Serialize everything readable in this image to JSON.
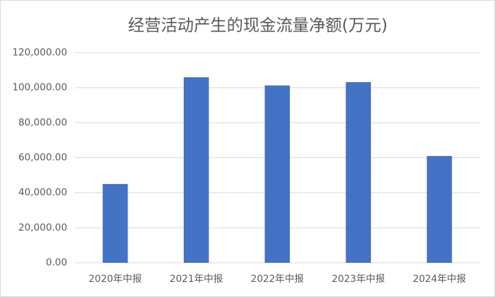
{
  "chart_data": {
    "type": "bar",
    "title": "经营活动产生的现金流量净额(万元)",
    "categories": [
      "2020年中报",
      "2021年中报",
      "2022年中报",
      "2023年中报",
      "2024年中报"
    ],
    "values": [
      45000,
      106000,
      101300,
      103200,
      61000
    ],
    "color": "#4472c4",
    "ylim": [
      0,
      120000
    ],
    "yticks": [
      {
        "value": 0,
        "label": "0.00"
      },
      {
        "value": 20000,
        "label": "20,000.00"
      },
      {
        "value": 40000,
        "label": "40,000.00"
      },
      {
        "value": 60000,
        "label": "60,000.00"
      },
      {
        "value": 80000,
        "label": "80,000.00"
      },
      {
        "value": 100000,
        "label": "100,000.00"
      },
      {
        "value": 120000,
        "label": "120,000.00"
      }
    ],
    "grid": true
  }
}
